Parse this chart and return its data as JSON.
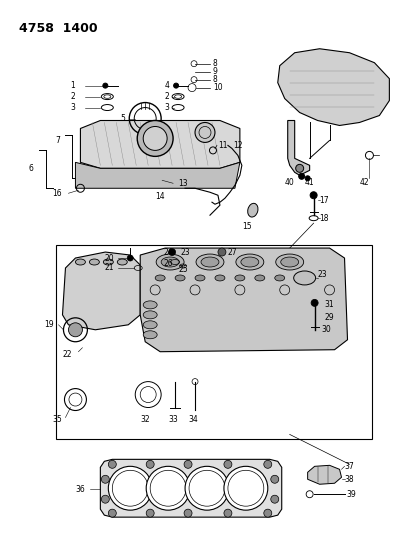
{
  "title": "4758  1400",
  "background_color": "#ffffff",
  "text_color": "#000000",
  "fig_width": 4.08,
  "fig_height": 5.33,
  "dpi": 100
}
